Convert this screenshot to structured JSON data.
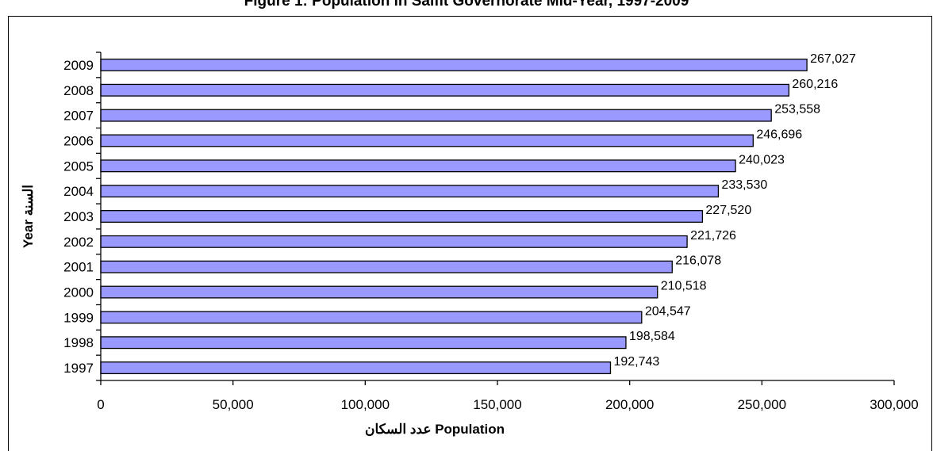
{
  "chart_data": {
    "type": "bar",
    "orientation": "horizontal",
    "title": "Figure 1: Population in Salfit Governorate Mid-Year, 1997-2009",
    "xlabel": "عدد السكان Population",
    "ylabel": "Year السنة",
    "categories": [
      "1997",
      "1998",
      "1999",
      "2000",
      "2001",
      "2002",
      "2003",
      "2004",
      "2005",
      "2006",
      "2007",
      "2008",
      "2009"
    ],
    "values": [
      192743,
      198584,
      204547,
      210518,
      216078,
      221726,
      227520,
      233530,
      240023,
      246696,
      253558,
      260216,
      267027
    ],
    "data_labels": [
      "192,743",
      "198,584",
      "204,547",
      "210,518",
      "216,078",
      "221,726",
      "227,520",
      "233,530",
      "240,023",
      "246,696",
      "253,558",
      "260,216",
      "267,027"
    ],
    "xlim": [
      0,
      300000
    ],
    "xticks": [
      0,
      50000,
      100000,
      150000,
      200000,
      250000,
      300000
    ],
    "xtick_labels": [
      "0",
      "50,000",
      "100,000",
      "150,000",
      "200,000",
      "250,000",
      "300,000"
    ],
    "bar_color": "#9999ff",
    "bar_edge_color": "#000000",
    "grid": false,
    "legend": "none"
  }
}
